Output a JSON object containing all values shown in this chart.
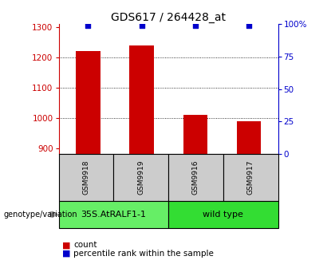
{
  "title": "GDS617 / 264428_at",
  "samples": [
    "GSM9918",
    "GSM9919",
    "GSM9916",
    "GSM9917"
  ],
  "bar_values": [
    1220,
    1240,
    1010,
    990
  ],
  "percentile_values": [
    99,
    99,
    99,
    99
  ],
  "ylim_left": [
    880,
    1310
  ],
  "ylim_right": [
    0,
    100
  ],
  "yticks_left": [
    900,
    1000,
    1100,
    1200,
    1300
  ],
  "ytick_labels_left": [
    "900",
    "1000",
    "1100",
    "1200",
    "1300"
  ],
  "yticks_right": [
    0,
    25,
    50,
    75,
    100
  ],
  "ytick_labels_right": [
    "0",
    "25",
    "50",
    "75",
    "100%"
  ],
  "grid_values": [
    1000,
    1100,
    1200
  ],
  "bar_color": "#cc0000",
  "dot_color": "#0000cc",
  "bar_width": 0.45,
  "groups": [
    {
      "label": "35S.AtRALF1-1",
      "color": "#66ee66"
    },
    {
      "label": "wild type",
      "color": "#33dd33"
    }
  ],
  "genotype_label": "genotype/variation",
  "legend_items": [
    {
      "color": "#cc0000",
      "label": "count"
    },
    {
      "color": "#0000cc",
      "label": "percentile rank within the sample"
    }
  ],
  "title_fontsize": 10,
  "tick_fontsize": 7.5,
  "sample_fontsize": 6.5,
  "group_fontsize": 8,
  "legend_fontsize": 7.5
}
